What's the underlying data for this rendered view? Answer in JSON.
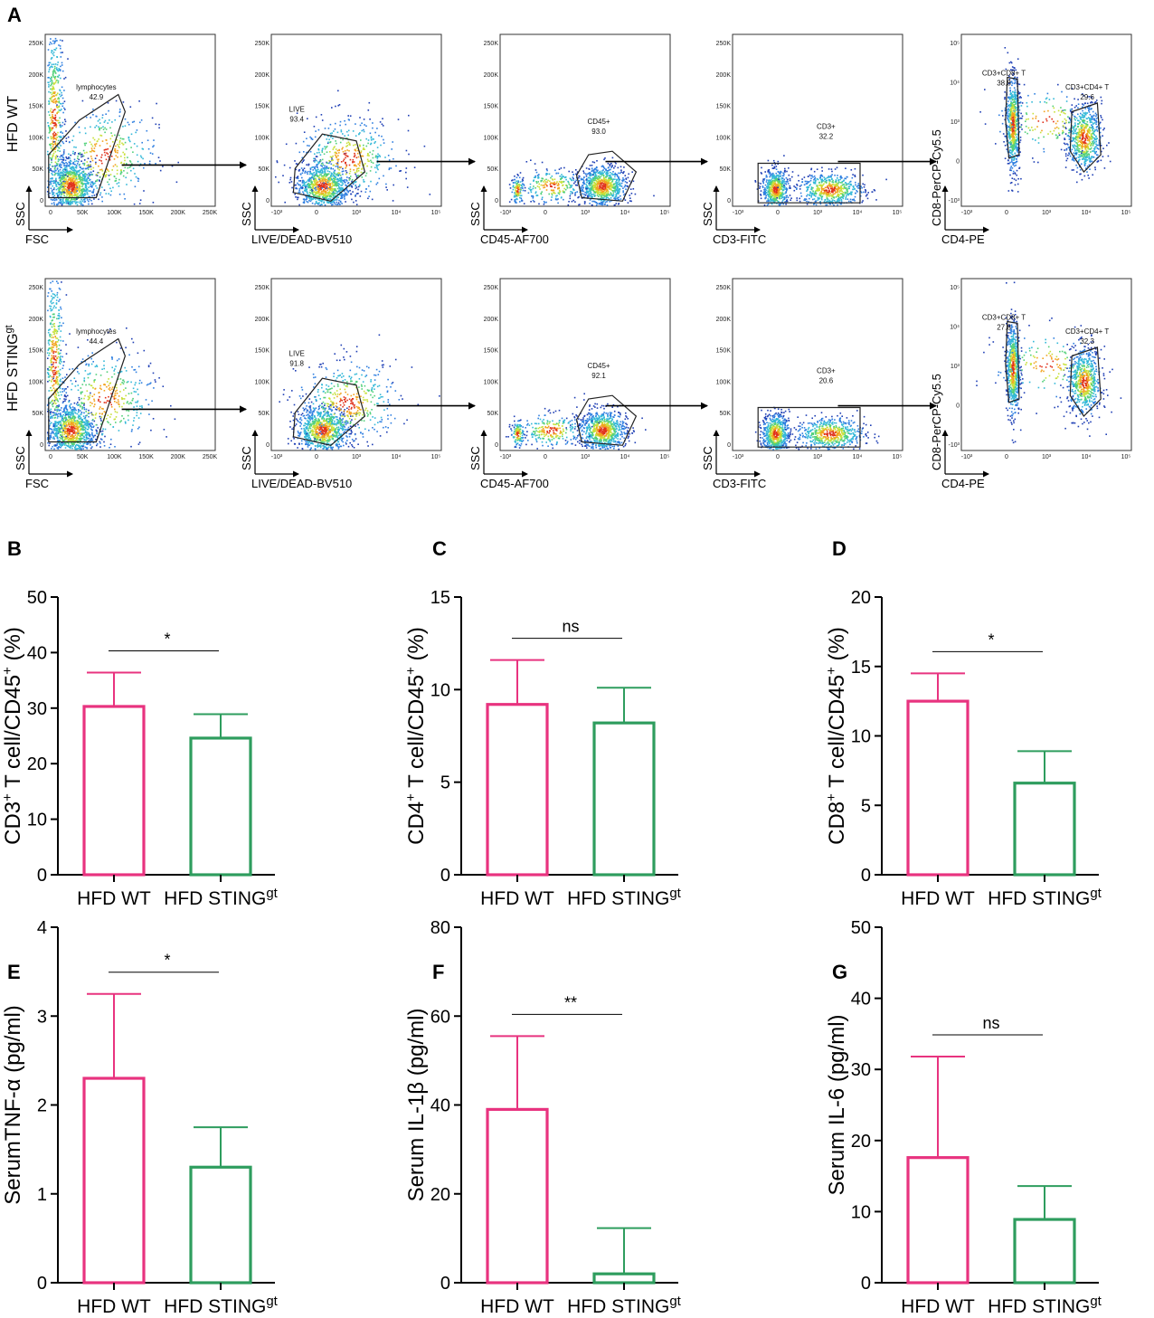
{
  "figure": {
    "colors": {
      "wt": "#e8337f",
      "sting": "#2e9d5e",
      "axis": "#000000"
    }
  },
  "panel_a": {
    "label": "A",
    "rows": [
      {
        "name": "HFD WT",
        "sup": "",
        "plots": [
          {
            "x_axis": "FSC",
            "y_axis": "SSC",
            "gate": "lymphocytes",
            "pct": "42.9",
            "x_ticks": [
              "0",
              "50K",
              "100K",
              "150K",
              "200K",
              "250K"
            ],
            "y_ticks": [
              "0",
              "50K",
              "100K",
              "150K",
              "200K",
              "250K"
            ]
          },
          {
            "x_axis": "LIVE/DEAD-BV510",
            "y_axis": "SSC",
            "gate": "LIVE",
            "pct": "93.4",
            "x_ticks": [
              "-10³",
              "0",
              "10³",
              "10⁴",
              "10⁵"
            ],
            "y_ticks": [
              "0",
              "50K",
              "100K",
              "150K",
              "200K",
              "250K"
            ]
          },
          {
            "x_axis": "CD45-AF700",
            "y_axis": "SSC",
            "gate": "CD45+",
            "pct": "93.0",
            "x_ticks": [
              "-10³",
              "0",
              "10³",
              "10⁴",
              "10⁵"
            ],
            "y_ticks": [
              "0",
              "50K",
              "100K",
              "150K",
              "200K",
              "250K"
            ]
          },
          {
            "x_axis": "CD3-FITC",
            "y_axis": "SSC",
            "gate": "CD3+",
            "pct": "32.2",
            "x_ticks": [
              "-10³",
              "0",
              "10³",
              "10⁴",
              "10⁵"
            ],
            "y_ticks": [
              "0",
              "50K",
              "100K",
              "150K",
              "200K",
              "250K"
            ]
          },
          {
            "x_axis": "CD4-PE",
            "y_axis": "CD8-PerCP-Cy5.5",
            "gate": "CD3+CD8+ T",
            "pct": "38.8",
            "gate2": "CD3+CD4+ T",
            "pct2": "29.6",
            "x_ticks": [
              "-10³",
              "0",
              "10³",
              "10⁴",
              "10⁵"
            ],
            "y_ticks": [
              "-10³",
              "0",
              "10³",
              "10⁴",
              "10⁵"
            ]
          }
        ]
      },
      {
        "name": "HFD STING",
        "sup": "gt",
        "plots": [
          {
            "x_axis": "FSC",
            "y_axis": "SSC",
            "gate": "lymphocytes",
            "pct": "44.4",
            "x_ticks": [
              "0",
              "50K",
              "100K",
              "150K",
              "200K",
              "250K"
            ],
            "y_ticks": [
              "0",
              "50K",
              "100K",
              "150K",
              "200K",
              "250K"
            ]
          },
          {
            "x_axis": "LIVE/DEAD-BV510",
            "y_axis": "SSC",
            "gate": "LIVE",
            "pct": "91.8",
            "x_ticks": [
              "-10³",
              "0",
              "10³",
              "10⁴",
              "10⁵"
            ],
            "y_ticks": [
              "0",
              "50K",
              "100K",
              "150K",
              "200K",
              "250K"
            ]
          },
          {
            "x_axis": "CD45-AF700",
            "y_axis": "SSC",
            "gate": "CD45+",
            "pct": "92.1",
            "x_ticks": [
              "-10³",
              "0",
              "10³",
              "10⁴",
              "10⁵"
            ],
            "y_ticks": [
              "0",
              "50K",
              "100K",
              "150K",
              "200K",
              "250K"
            ]
          },
          {
            "x_axis": "CD3-FITC",
            "y_axis": "SSC",
            "gate": "CD3+",
            "pct": "20.6",
            "x_ticks": [
              "-10³",
              "0",
              "10³",
              "10⁴",
              "10⁵"
            ],
            "y_ticks": [
              "0",
              "50K",
              "100K",
              "150K",
              "200K",
              "250K"
            ]
          },
          {
            "x_axis": "CD4-PE",
            "y_axis": "CD8-PerCP-Cy5.5",
            "gate": "CD3+CD8+ T",
            "pct": "27.8",
            "gate2": "CD3+CD4+ T",
            "pct2": "32.3",
            "x_ticks": [
              "-10³",
              "0",
              "10³",
              "10⁴",
              "10⁵"
            ],
            "y_ticks": [
              "-10³",
              "0",
              "10³",
              "10⁴",
              "10⁵"
            ]
          }
        ]
      }
    ]
  },
  "chart_data": [
    {
      "panel": "B",
      "type": "bar",
      "ylabel_pre": "CD3",
      "ylabel_sup": "+",
      "ylabel_mid": " T cell/CD45",
      "ylabel_sup2": "+",
      "ylabel_post": " (%)",
      "categories": [
        "HFD WT",
        "HFD STING"
      ],
      "category_sup": [
        "",
        "gt"
      ],
      "values": [
        30.3,
        24.6
      ],
      "errors": [
        6.1,
        4.3
      ],
      "ylim": [
        0,
        50
      ],
      "yticks": [
        0,
        10,
        20,
        30,
        40,
        50
      ],
      "significance": "*"
    },
    {
      "panel": "C",
      "type": "bar",
      "ylabel_pre": "CD4",
      "ylabel_sup": "+",
      "ylabel_mid": " T cell/CD45",
      "ylabel_sup2": "+",
      "ylabel_post": " (%)",
      "categories": [
        "HFD WT",
        "HFD STING"
      ],
      "category_sup": [
        "",
        "gt"
      ],
      "values": [
        9.2,
        8.2
      ],
      "errors": [
        2.4,
        1.9
      ],
      "ylim": [
        0,
        15
      ],
      "yticks": [
        0,
        5,
        10,
        15
      ],
      "significance": "ns"
    },
    {
      "panel": "D",
      "type": "bar",
      "ylabel_pre": "CD8",
      "ylabel_sup": "+",
      "ylabel_mid": " T cell/CD45",
      "ylabel_sup2": "+",
      "ylabel_post": " (%)",
      "categories": [
        "HFD WT",
        "HFD STING"
      ],
      "category_sup": [
        "",
        "gt"
      ],
      "values": [
        12.5,
        6.6
      ],
      "errors": [
        2.0,
        2.3
      ],
      "ylim": [
        0,
        20
      ],
      "yticks": [
        0,
        5,
        10,
        15,
        20
      ],
      "significance": "*"
    },
    {
      "panel": "E",
      "type": "bar",
      "ylabel_pre": "SerumTNF-α (pg/ml)",
      "ylabel_sup": "",
      "ylabel_mid": "",
      "ylabel_sup2": "",
      "ylabel_post": "",
      "categories": [
        "HFD WT",
        "HFD STING"
      ],
      "category_sup": [
        "",
        "gt"
      ],
      "values": [
        2.3,
        1.3
      ],
      "errors": [
        0.95,
        0.45
      ],
      "ylim": [
        0,
        4
      ],
      "yticks": [
        0,
        1,
        2,
        3,
        4
      ],
      "significance": "*"
    },
    {
      "panel": "F",
      "type": "bar",
      "ylabel_pre": "Serum IL-1β (pg/ml)",
      "ylabel_sup": "",
      "ylabel_mid": "",
      "ylabel_sup2": "",
      "ylabel_post": "",
      "categories": [
        "HFD WT",
        "HFD STING"
      ],
      "category_sup": [
        "",
        "gt"
      ],
      "values": [
        39,
        2
      ],
      "errors": [
        16.5,
        10.3
      ],
      "ylim": [
        0,
        80
      ],
      "yticks": [
        0,
        20,
        40,
        60,
        80
      ],
      "significance": "**"
    },
    {
      "panel": "G",
      "type": "bar",
      "ylabel_pre": "Serum IL-6 (pg/ml)",
      "ylabel_sup": "",
      "ylabel_mid": "",
      "ylabel_sup2": "",
      "ylabel_post": "",
      "categories": [
        "HFD WT",
        "HFD STING"
      ],
      "category_sup": [
        "",
        "gt"
      ],
      "values": [
        17.6,
        8.9
      ],
      "errors": [
        14.2,
        4.7
      ],
      "ylim": [
        0,
        50
      ],
      "yticks": [
        0,
        10,
        20,
        30,
        40,
        50
      ],
      "significance": "ns"
    }
  ]
}
